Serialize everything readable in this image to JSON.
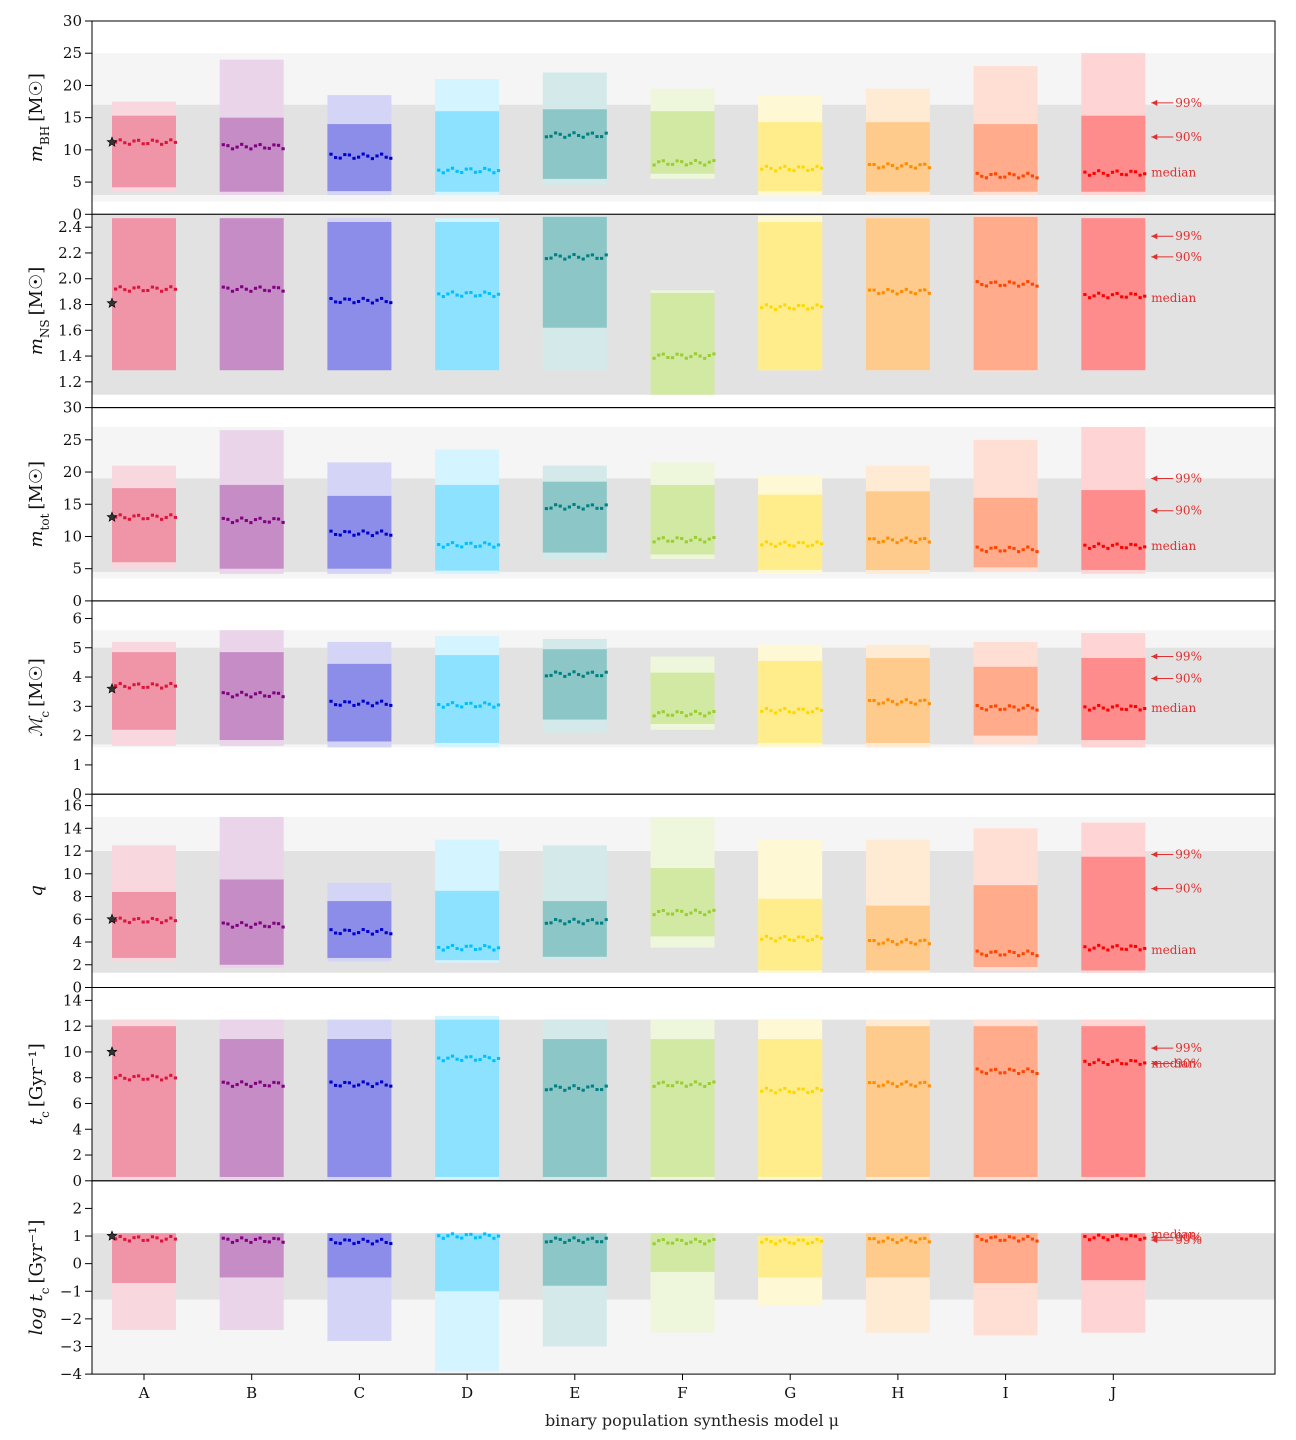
{
  "chart_data": {
    "type": "bar",
    "xlabel": "binary population synthesis model μ",
    "categories": [
      "A",
      "B",
      "C",
      "D",
      "E",
      "F",
      "G",
      "H",
      "I",
      "J"
    ],
    "colors": [
      "#dc143c",
      "#800080",
      "#0000cd",
      "#00bfff",
      "#008080",
      "#9acd32",
      "#ffd700",
      "#ff8c00",
      "#ff4500",
      "#ff0000"
    ],
    "annotations": {
      "p99": "99%",
      "p90": "90%",
      "median": "median"
    },
    "panels": [
      {
        "ylabel_main": "m",
        "ylabel_sub": "BH",
        "ylabel_unit": "[M☉]",
        "ylim": [
          0,
          30
        ],
        "ticks": [
          0,
          5,
          10,
          15,
          20,
          25,
          30
        ],
        "tick_labels": [
          "0",
          "5",
          "10",
          "15",
          "20",
          "25",
          "30"
        ],
        "band90": [
          3,
          17
        ],
        "band99": [
          2,
          25
        ],
        "star": 11.2,
        "median": [
          11.2,
          10.5,
          9.0,
          6.8,
          12.3,
          8.0,
          7.1,
          7.5,
          6.0,
          6.4
        ],
        "lo90": [
          4.2,
          3.5,
          3.6,
          3.5,
          5.5,
          6.3,
          3.6,
          3.5,
          3.5,
          3.5
        ],
        "hi90": [
          15.3,
          15.0,
          14.0,
          16.0,
          16.3,
          16.0,
          14.3,
          14.3,
          14.0,
          15.3
        ],
        "lo99": [
          3.5,
          3.0,
          3.0,
          3.0,
          4.5,
          5.5,
          3.0,
          3.0,
          3.0,
          3.0
        ],
        "hi99": [
          17.5,
          24.0,
          18.5,
          21.0,
          22.0,
          19.5,
          18.5,
          19.5,
          23.0,
          25.0
        ],
        "ann_values": {
          "p99": 17.3,
          "p90": 12.0,
          "median": 6.5
        }
      },
      {
        "ylabel_main": "m",
        "ylabel_sub": "NS",
        "ylabel_unit": "[M☉]",
        "ylim": [
          1.0,
          2.5
        ],
        "ticks": [
          1.2,
          1.4,
          1.6,
          1.8,
          2.0,
          2.2,
          2.4
        ],
        "tick_labels": [
          "1.2",
          "1.4",
          "1.6",
          "1.8",
          "2.0",
          "2.2",
          "2.4"
        ],
        "band90": [
          1.1,
          2.5
        ],
        "band99": [
          1.1,
          2.5
        ],
        "star": 1.81,
        "median": [
          1.92,
          1.92,
          1.83,
          1.88,
          2.17,
          1.4,
          1.78,
          1.9,
          1.96,
          1.87
        ],
        "lo90": [
          1.29,
          1.29,
          1.29,
          1.29,
          1.62,
          1.1,
          1.29,
          1.29,
          1.29,
          1.29
        ],
        "hi90": [
          2.47,
          2.47,
          2.44,
          2.44,
          2.48,
          1.89,
          2.44,
          2.47,
          2.48,
          2.47
        ],
        "lo99": [
          1.29,
          1.29,
          1.29,
          1.29,
          1.29,
          1.1,
          1.29,
          1.29,
          1.28,
          1.29
        ],
        "hi99": [
          2.47,
          2.47,
          2.47,
          2.47,
          2.49,
          1.91,
          2.49,
          2.47,
          2.49,
          2.47
        ],
        "ann_values": {
          "p99": 2.33,
          "p90": 2.17,
          "median": 1.85
        }
      },
      {
        "ylabel_main": "m",
        "ylabel_sub": "tot",
        "ylabel_unit": "[M☉]",
        "ylim": [
          0,
          30
        ],
        "ticks": [
          0,
          5,
          10,
          15,
          20,
          25,
          30
        ],
        "tick_labels": [
          "0",
          "5",
          "10",
          "15",
          "20",
          "25",
          "30"
        ],
        "band90": [
          4.5,
          19
        ],
        "band99": [
          3.5,
          27
        ],
        "star": 13.0,
        "median": [
          13.0,
          12.5,
          10.5,
          8.7,
          14.6,
          9.5,
          8.8,
          9.4,
          8.0,
          8.5
        ],
        "lo90": [
          6.0,
          5.0,
          5.0,
          4.7,
          7.5,
          7.2,
          4.8,
          4.8,
          5.2,
          4.8
        ],
        "hi90": [
          17.5,
          18.0,
          16.3,
          18.0,
          18.5,
          18.0,
          16.5,
          17.0,
          16.0,
          17.2
        ],
        "lo99": [
          5.0,
          4.2,
          4.2,
          4.2,
          6.5,
          6.5,
          4.2,
          4.2,
          4.5,
          4.2
        ],
        "hi99": [
          21.0,
          26.5,
          21.5,
          23.5,
          21.0,
          21.5,
          19.5,
          21.0,
          25.0,
          27.0
        ],
        "ann_values": {
          "p99": 19.0,
          "p90": 14.0,
          "median": 8.5
        }
      },
      {
        "ylabel_main": "ℳ",
        "ylabel_sub": "c",
        "ylabel_unit": "[M☉]",
        "ylim": [
          0,
          6.6
        ],
        "ticks": [
          0,
          1,
          2,
          3,
          4,
          5,
          6
        ],
        "tick_labels": [
          "0",
          "1",
          "2",
          "3",
          "4",
          "5",
          "6"
        ],
        "band90": [
          1.7,
          5.0
        ],
        "band99": [
          1.6,
          5.6
        ],
        "star": 3.6,
        "median": [
          3.7,
          3.4,
          3.1,
          3.05,
          4.1,
          2.75,
          2.85,
          3.15,
          2.95,
          2.95
        ],
        "lo90": [
          2.2,
          1.85,
          1.8,
          1.75,
          2.55,
          2.4,
          1.75,
          1.75,
          2.0,
          1.85
        ],
        "hi90": [
          4.85,
          4.85,
          4.45,
          4.75,
          4.95,
          4.15,
          4.55,
          4.65,
          4.35,
          4.65
        ],
        "lo99": [
          1.65,
          1.65,
          1.6,
          1.6,
          2.1,
          2.2,
          1.6,
          1.6,
          1.7,
          1.6
        ],
        "hi99": [
          5.2,
          5.6,
          5.2,
          5.4,
          5.3,
          4.7,
          5.1,
          5.1,
          5.2,
          5.5
        ],
        "ann_values": {
          "p99": 4.7,
          "p90": 3.95,
          "median": 2.95
        }
      },
      {
        "ylabel_main": "q",
        "ylabel_sub": "",
        "ylabel_unit": "",
        "ylim": [
          0,
          17
        ],
        "ticks": [
          0,
          2,
          4,
          6,
          8,
          10,
          12,
          14,
          16
        ],
        "tick_labels": [
          "0",
          "2",
          "4",
          "6",
          "8",
          "10",
          "12",
          "14",
          "16"
        ],
        "band90": [
          1.3,
          12
        ],
        "band99": [
          1.3,
          15
        ],
        "star": 6.0,
        "median": [
          5.9,
          5.5,
          4.9,
          3.5,
          5.8,
          6.6,
          4.3,
          4.0,
          3.0,
          3.5
        ],
        "lo90": [
          2.6,
          2.0,
          2.6,
          2.4,
          2.7,
          4.5,
          1.5,
          1.5,
          1.8,
          1.5
        ],
        "hi90": [
          8.4,
          9.5,
          7.6,
          8.5,
          7.6,
          10.5,
          7.8,
          7.2,
          9.0,
          11.5
        ],
        "lo99": [
          2.3,
          1.7,
          2.3,
          2.2,
          2.5,
          3.5,
          1.3,
          1.3,
          1.5,
          1.3
        ],
        "hi99": [
          12.5,
          15.0,
          9.2,
          13.0,
          12.5,
          15.0,
          13.0,
          13.0,
          14.0,
          14.5
        ],
        "ann_values": {
          "p99": 11.7,
          "p90": 8.7,
          "median": 3.3
        }
      },
      {
        "ylabel_main": "t",
        "ylabel_sub": "c",
        "ylabel_unit": "[Gyr⁻¹]",
        "ylim": [
          0,
          15
        ],
        "ticks": [
          0,
          2,
          4,
          6,
          8,
          10,
          12,
          14
        ],
        "tick_labels": [
          "0",
          "2",
          "4",
          "6",
          "8",
          "10",
          "12",
          "14"
        ],
        "band90": [
          0,
          12.5
        ],
        "band99": [
          0,
          12.5
        ],
        "star": 10.0,
        "median": [
          8.0,
          7.5,
          7.5,
          9.5,
          7.2,
          7.5,
          7.0,
          7.5,
          8.5,
          9.2
        ],
        "lo90": [
          0.3,
          0.3,
          0.3,
          0.3,
          0.3,
          0.3,
          0.3,
          0.3,
          0.3,
          0.3
        ],
        "hi90": [
          12.0,
          11.0,
          11.0,
          12.5,
          11.0,
          11.0,
          11.0,
          12.0,
          12.0,
          12.0
        ],
        "lo99": [
          0.1,
          0.1,
          0.1,
          0.1,
          0.1,
          0.1,
          0.1,
          0.1,
          0.1,
          0.1
        ],
        "hi99": [
          12.5,
          12.5,
          12.5,
          12.8,
          12.5,
          12.5,
          12.5,
          12.5,
          12.5,
          12.5
        ],
        "ann_values": {
          "p99": 10.3,
          "p90": 9.1,
          "median": 9.1
        }
      },
      {
        "ylabel_main": "log t",
        "ylabel_sub": "c",
        "ylabel_unit": "[Gyr⁻¹]",
        "ylim": [
          -4,
          3
        ],
        "ticks": [
          -4,
          -3,
          -2,
          -1,
          0,
          1,
          2
        ],
        "tick_labels": [
          "−4",
          "−3",
          "−2",
          "−1",
          "0",
          "1",
          "2"
        ],
        "band90": [
          -1.3,
          1.1
        ],
        "band99": [
          -4,
          1.1
        ],
        "star": 1.0,
        "median": [
          0.9,
          0.85,
          0.8,
          1.0,
          0.85,
          0.8,
          0.8,
          0.85,
          0.9,
          0.95
        ],
        "lo90": [
          -0.7,
          -0.5,
          -0.5,
          -1.0,
          -0.8,
          -0.3,
          -0.5,
          -0.5,
          -0.7,
          -0.6
        ],
        "hi90": [
          1.1,
          1.1,
          1.1,
          1.1,
          1.1,
          1.1,
          1.0,
          1.1,
          1.1,
          1.1
        ],
        "lo99": [
          -2.4,
          -2.4,
          -2.8,
          -3.9,
          -3.0,
          -2.5,
          -1.5,
          -2.5,
          -2.6,
          -2.5
        ],
        "hi99": [
          1.1,
          1.1,
          1.1,
          1.1,
          1.1,
          1.1,
          1.0,
          1.1,
          1.1,
          1.1
        ],
        "ann_values": {
          "p99": 0.85,
          "p90": 0.95,
          "median": 1.05
        }
      }
    ]
  }
}
